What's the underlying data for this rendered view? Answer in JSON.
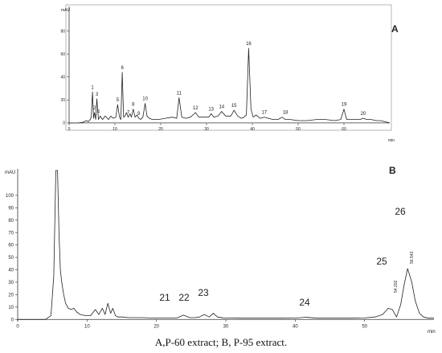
{
  "caption": "A,P-60 extract; B, P-95 extract.",
  "chart_data": [
    {
      "type": "line",
      "panel_label": "A",
      "ylabel": "mAU",
      "xlabel": "min",
      "xlim": [
        0,
        70
      ],
      "ylim": [
        -5,
        100
      ],
      "x_ticks": [
        0,
        10,
        20,
        30,
        40,
        50,
        60
      ],
      "y_ticks": [
        0,
        20,
        40,
        60,
        80
      ],
      "grid": false,
      "series": [
        {
          "x": [
            0,
            1,
            2,
            3,
            3.8,
            4.2,
            4.6,
            4.85,
            5.1,
            5.35,
            5.55,
            5.8,
            6.05,
            6.4,
            6.8,
            7.3,
            7.9,
            8.6,
            9.1,
            9.6,
            10.2,
            10.6,
            11.0,
            11.3,
            11.6,
            11.9,
            12.2,
            12.5,
            12.9,
            13.3,
            13.6,
            14.0,
            14.4,
            14.8,
            15.2,
            15.6,
            16.1,
            16.6,
            17.0,
            17.5,
            18.2,
            19.5,
            21,
            22.5,
            23.5,
            24.0,
            24.6,
            25.5,
            26.5,
            27.6,
            28.3,
            29.2,
            30.5,
            31.0,
            31.6,
            32.5,
            33.3,
            34.2,
            35.3,
            36.0,
            36.8,
            37.6,
            38.2,
            38.7,
            39.2,
            39.7,
            40.2,
            40.8,
            41.7,
            42.6,
            43.5,
            44.5,
            45.6,
            46.5,
            47.2,
            48.3,
            50,
            52,
            54,
            56,
            58,
            59.3,
            60.0,
            60.6,
            61.5,
            62.5,
            63.5,
            64.2,
            65.0,
            66,
            67,
            68,
            69,
            70
          ],
          "y": [
            0,
            0,
            0,
            0.5,
            2,
            1,
            3,
            5,
            27,
            4,
            9,
            3,
            21,
            3,
            6,
            3,
            6,
            3,
            6,
            4,
            5,
            16,
            5,
            3,
            44,
            5,
            6,
            9,
            5,
            8,
            5,
            12,
            5,
            7,
            4,
            3,
            5,
            17,
            6,
            4,
            3,
            3,
            4,
            5,
            4,
            22,
            5,
            4,
            5,
            9,
            5,
            5,
            5,
            8,
            5,
            6,
            10,
            6,
            6,
            11,
            6,
            4,
            5,
            7,
            65,
            12,
            5,
            7,
            4,
            5,
            4,
            3,
            3,
            5,
            3,
            3,
            2,
            2,
            3,
            3,
            2,
            3,
            12,
            3,
            3,
            3,
            3,
            4,
            3,
            3,
            2,
            2,
            1,
            0
          ]
        }
      ],
      "peak_labels": [
        {
          "text": "1",
          "x": 5.1,
          "y": 27
        },
        {
          "text": "2",
          "x": 5.55,
          "y": 9
        },
        {
          "text": "3",
          "x": 6.05,
          "y": 21
        },
        {
          "text": "4",
          "x": 6.4,
          "y": 6
        },
        {
          "text": "5",
          "x": 10.6,
          "y": 16
        },
        {
          "text": "6",
          "x": 11.6,
          "y": 44
        },
        {
          "text": "7",
          "x": 12.9,
          "y": 5
        },
        {
          "text": "8",
          "x": 14.0,
          "y": 12
        },
        {
          "text": "9",
          "x": 15.2,
          "y": 4
        },
        {
          "text": "10",
          "x": 16.6,
          "y": 17
        },
        {
          "text": "11",
          "x": 24.0,
          "y": 22
        },
        {
          "text": "12",
          "x": 27.6,
          "y": 9
        },
        {
          "text": "13",
          "x": 31.0,
          "y": 8
        },
        {
          "text": "14",
          "x": 33.3,
          "y": 10
        },
        {
          "text": "15",
          "x": 36.0,
          "y": 11
        },
        {
          "text": "16",
          "x": 39.2,
          "y": 65
        },
        {
          "text": "17",
          "x": 42.6,
          "y": 5
        },
        {
          "text": "18",
          "x": 47.2,
          "y": 5
        },
        {
          "text": "19",
          "x": 60.0,
          "y": 12
        },
        {
          "text": "20",
          "x": 64.2,
          "y": 4
        }
      ]
    },
    {
      "type": "line",
      "panel_label": "B",
      "ylabel": "mAU",
      "xlabel": "min",
      "xlim": [
        0,
        60
      ],
      "ylim": [
        -5,
        120
      ],
      "x_ticks": [
        0,
        10,
        20,
        30,
        40,
        50
      ],
      "y_ticks": [
        0,
        10,
        20,
        30,
        40,
        50,
        60,
        70,
        80,
        90,
        100
      ],
      "grid": false,
      "series": [
        {
          "x": [
            0,
            2,
            4,
            4.8,
            5.2,
            5.5,
            5.75,
            5.95,
            6.15,
            6.35,
            6.6,
            6.9,
            7.3,
            7.7,
            8.1,
            8.5,
            9.0,
            9.8,
            10.5,
            11.2,
            11.7,
            12.2,
            12.6,
            13.0,
            13.4,
            13.7,
            14.1,
            14.5,
            15.0,
            16,
            17,
            18,
            19,
            20,
            21,
            22,
            23,
            23.9,
            24.8,
            25.6,
            26.2,
            26.9,
            27.6,
            28.2,
            28.8,
            29.6,
            30.5,
            32,
            34,
            36,
            38,
            40,
            41.5,
            43.2,
            44.5,
            46,
            48,
            50,
            51.5,
            52.6,
            53.4,
            54.0,
            54.6,
            55.2,
            55.7,
            56.2,
            56.8,
            57.3,
            57.9,
            58.5,
            59.2,
            60
          ],
          "y": [
            0,
            0,
            0,
            3,
            35,
            120,
            120,
            70,
            40,
            30,
            21,
            13,
            9,
            8,
            9,
            6,
            4,
            3,
            3,
            8,
            4,
            9,
            4,
            13,
            5,
            9,
            3,
            2,
            2,
            1.5,
            1.5,
            1.5,
            1.2,
            1.2,
            1.2,
            1.2,
            1.3,
            3.5,
            1.5,
            1.5,
            2,
            4,
            2,
            5,
            2,
            1.3,
            1.2,
            1,
            1,
            1,
            1,
            1.1,
            1.8,
            1,
            1,
            1,
            1,
            1.2,
            2,
            4,
            9,
            8,
            2,
            12,
            28,
            41,
            30,
            15,
            5,
            2,
            1,
            1
          ]
        }
      ],
      "peak_labels": [
        {
          "text": "21",
          "x": 21,
          "y": 1.2
        },
        {
          "text": "22",
          "x": 23.9,
          "y": 3.5
        },
        {
          "text": "23",
          "x": 26.9,
          "y": 4
        },
        {
          "text": "24",
          "x": 41.5,
          "y": 1.8
        },
        {
          "text": "25",
          "x": 54.0,
          "y": 8
        },
        {
          "text": "26",
          "x": 56.2,
          "y": 41
        }
      ],
      "peak_annotations": [
        "54.202",
        "56.543"
      ]
    }
  ]
}
